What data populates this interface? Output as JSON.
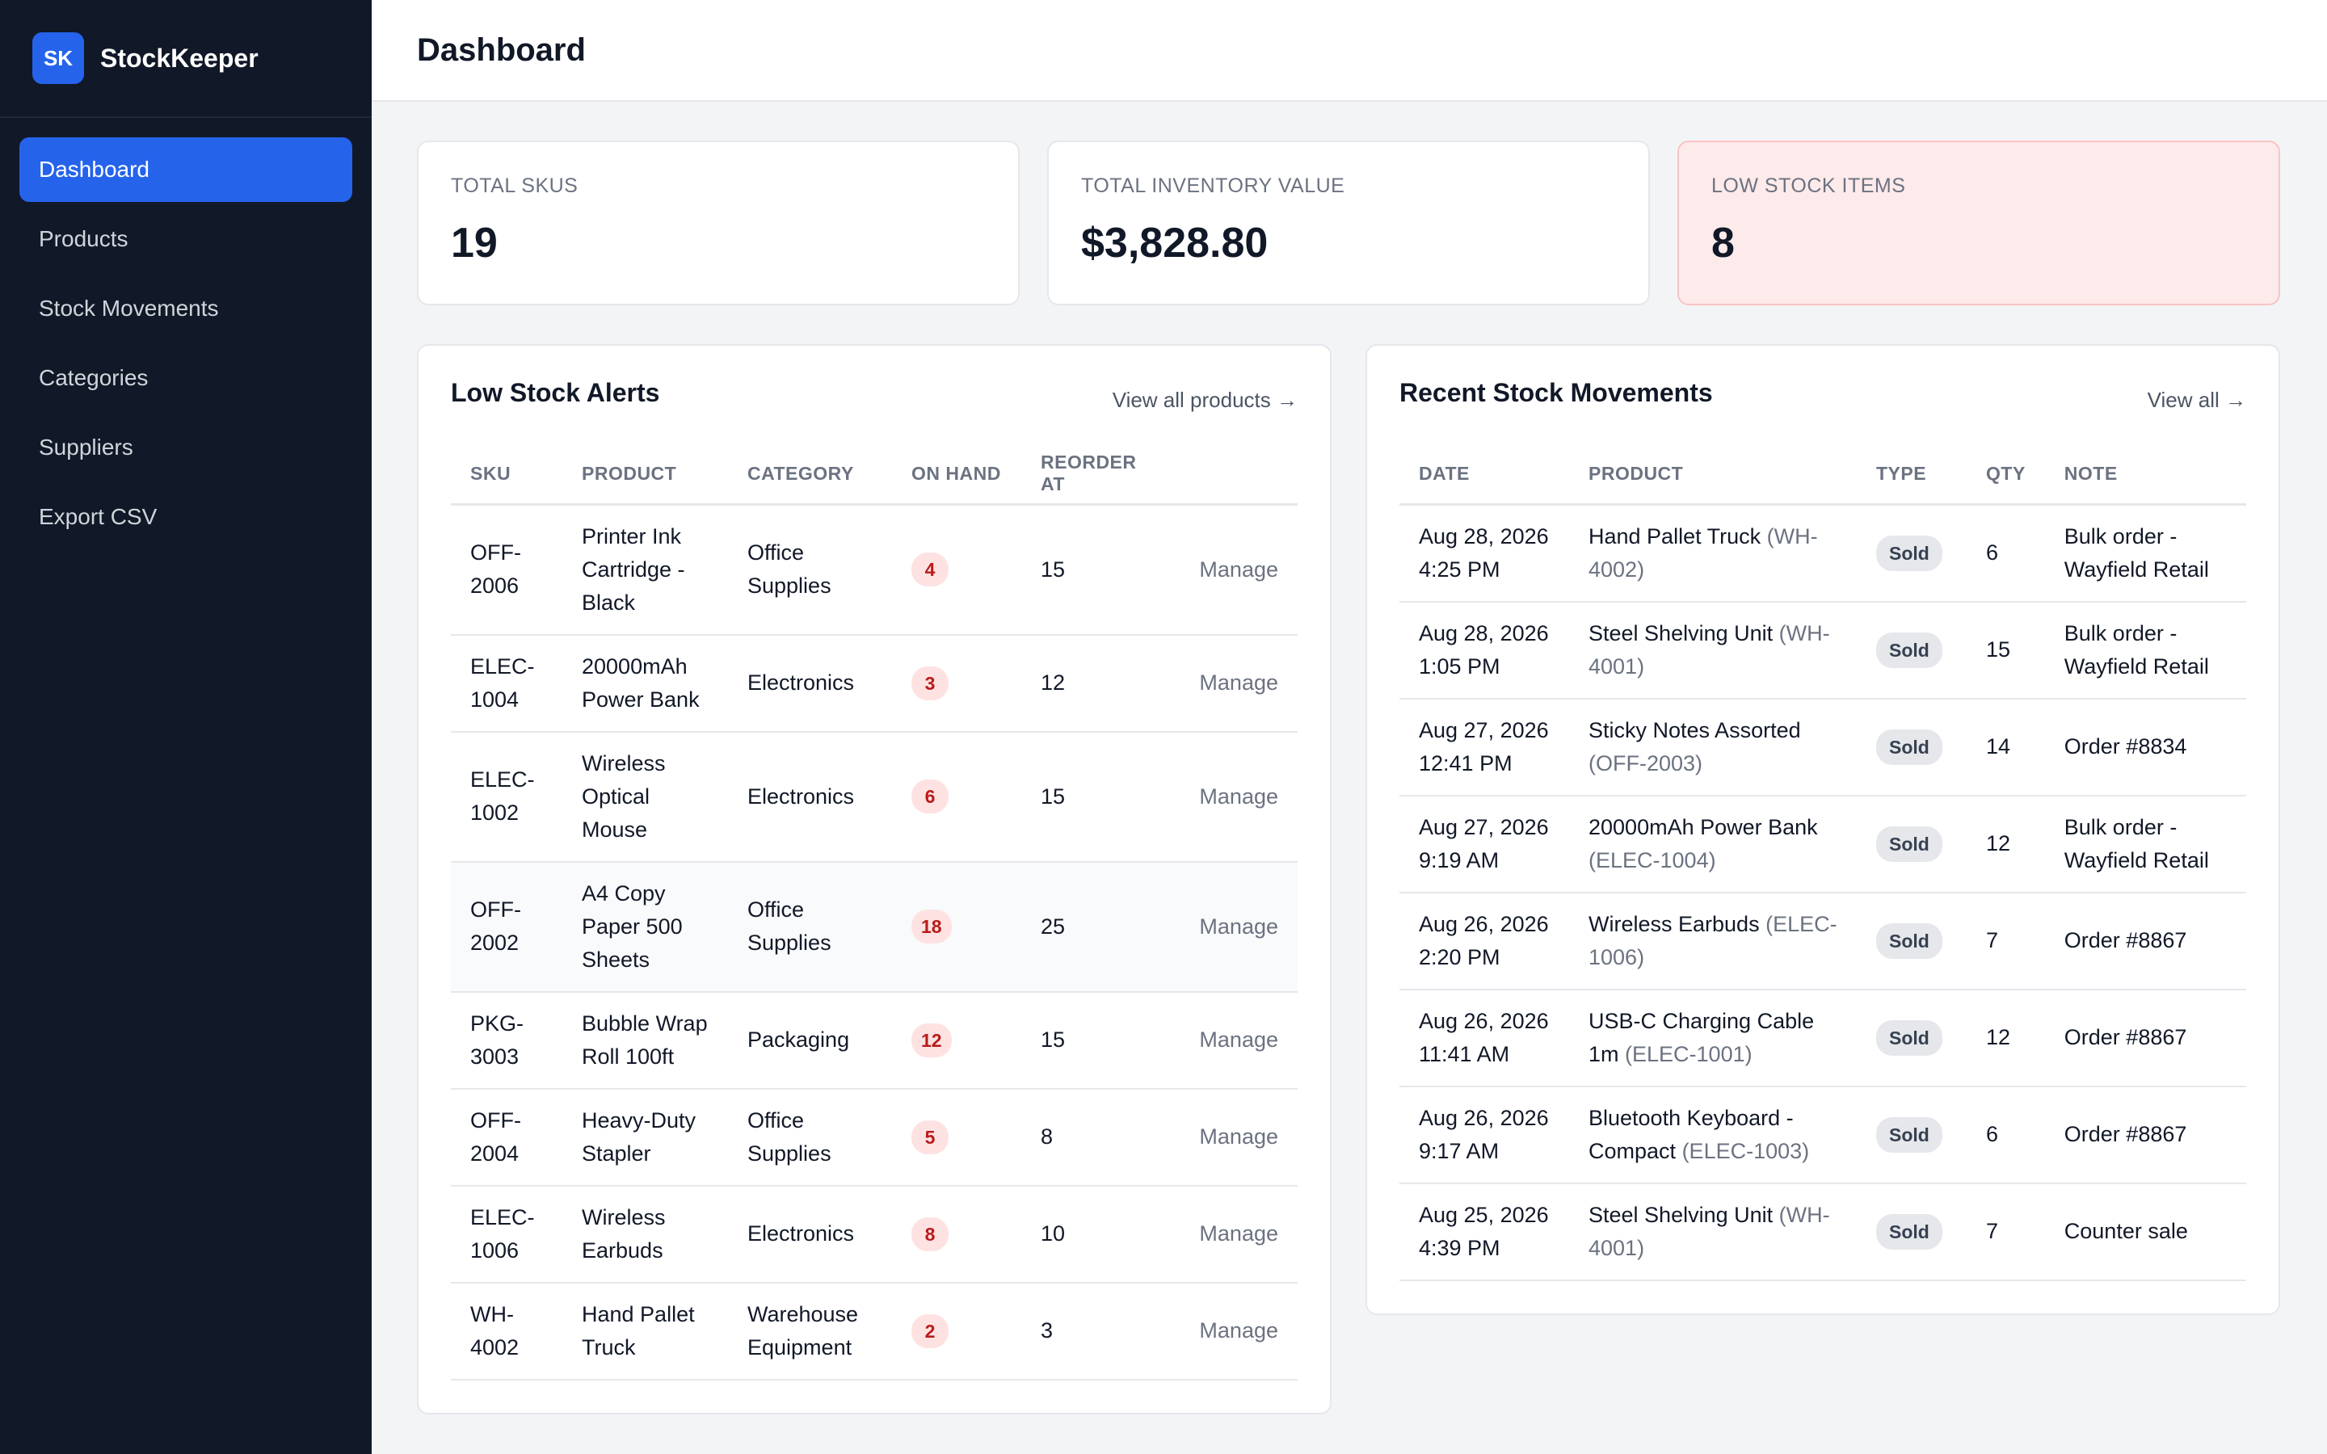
{
  "brand": {
    "logo": "SK",
    "name": "StockKeeper"
  },
  "nav": [
    {
      "label": "Dashboard",
      "active": true
    },
    {
      "label": "Products"
    },
    {
      "label": "Stock Movements"
    },
    {
      "label": "Categories"
    },
    {
      "label": "Suppliers"
    },
    {
      "label": "Export CSV"
    }
  ],
  "header": {
    "title": "Dashboard"
  },
  "stats": [
    {
      "label": "TOTAL SKUS",
      "value": "19"
    },
    {
      "label": "TOTAL INVENTORY VALUE",
      "value": "$3,828.80"
    },
    {
      "label": "LOW STOCK ITEMS",
      "value": "8"
    }
  ],
  "low_stock": {
    "title": "Low Stock Alerts",
    "link": "View all products →",
    "columns": [
      "SKU",
      "PRODUCT",
      "CATEGORY",
      "ON HAND",
      "REORDER AT",
      ""
    ],
    "rows": [
      {
        "sku": "OFF-2006",
        "product": "Printer Ink Cartridge - Black",
        "category": "Office Supplies",
        "on_hand": "4",
        "reorder": "15",
        "action": "Manage"
      },
      {
        "sku": "ELEC-1004",
        "product": "20000mAh Power Bank",
        "category": "Electronics",
        "on_hand": "3",
        "reorder": "12",
        "action": "Manage"
      },
      {
        "sku": "ELEC-1002",
        "product": "Wireless Optical Mouse",
        "category": "Electronics",
        "on_hand": "6",
        "reorder": "15",
        "action": "Manage"
      },
      {
        "sku": "OFF-2002",
        "product": "A4 Copy Paper 500 Sheets",
        "category": "Office Supplies",
        "on_hand": "18",
        "reorder": "25",
        "action": "Manage"
      },
      {
        "sku": "PKG-3003",
        "product": "Bubble Wrap Roll 100ft",
        "category": "Packaging",
        "on_hand": "12",
        "reorder": "15",
        "action": "Manage"
      },
      {
        "sku": "OFF-2004",
        "product": "Heavy-Duty Stapler",
        "category": "Office Supplies",
        "on_hand": "5",
        "reorder": "8",
        "action": "Manage"
      },
      {
        "sku": "ELEC-1006",
        "product": "Wireless Earbuds",
        "category": "Electronics",
        "on_hand": "8",
        "reorder": "10",
        "action": "Manage"
      },
      {
        "sku": "WH-4002",
        "product": "Hand Pallet Truck",
        "category": "Warehouse Equipment",
        "on_hand": "2",
        "reorder": "3",
        "action": "Manage"
      }
    ]
  },
  "movements": {
    "title": "Recent Stock Movements",
    "link": "View all →",
    "columns": [
      "DATE",
      "PRODUCT",
      "TYPE",
      "QTY",
      "NOTE"
    ],
    "rows": [
      {
        "date": "Aug 28, 2026 4:25 PM",
        "product": "Hand Pallet Truck",
        "sku": "(WH-4002)",
        "type": "Sold",
        "qty": "6",
        "note": "Bulk order - Wayfield Retail"
      },
      {
        "date": "Aug 28, 2026 1:05 PM",
        "product": "Steel Shelving Unit",
        "sku": "(WH-4001)",
        "type": "Sold",
        "qty": "15",
        "note": "Bulk order - Wayfield Retail"
      },
      {
        "date": "Aug 27, 2026 12:41 PM",
        "product": "Sticky Notes Assorted",
        "sku": "(OFF-2003)",
        "type": "Sold",
        "qty": "14",
        "note": "Order #8834"
      },
      {
        "date": "Aug 27, 2026 9:19 AM",
        "product": "20000mAh Power Bank",
        "sku": "(ELEC-1004)",
        "type": "Sold",
        "qty": "12",
        "note": "Bulk order - Wayfield Retail"
      },
      {
        "date": "Aug 26, 2026 2:20 PM",
        "product": "Wireless Earbuds",
        "sku": "(ELEC-1006)",
        "type": "Sold",
        "qty": "7",
        "note": "Order #8867"
      },
      {
        "date": "Aug 26, 2026 11:41 AM",
        "product": "USB-C Charging Cable 1m",
        "sku": "(ELEC-1001)",
        "type": "Sold",
        "qty": "12",
        "note": "Order #8867"
      },
      {
        "date": "Aug 26, 2026 9:17 AM",
        "product": "Bluetooth Keyboard - Compact",
        "sku": "(ELEC-1003)",
        "type": "Sold",
        "qty": "6",
        "note": "Order #8867"
      },
      {
        "date": "Aug 25, 2026 4:39 PM",
        "product": "Steel Shelving Unit",
        "sku": "(WH-4001)",
        "type": "Sold",
        "qty": "7",
        "note": "Counter sale"
      }
    ]
  }
}
